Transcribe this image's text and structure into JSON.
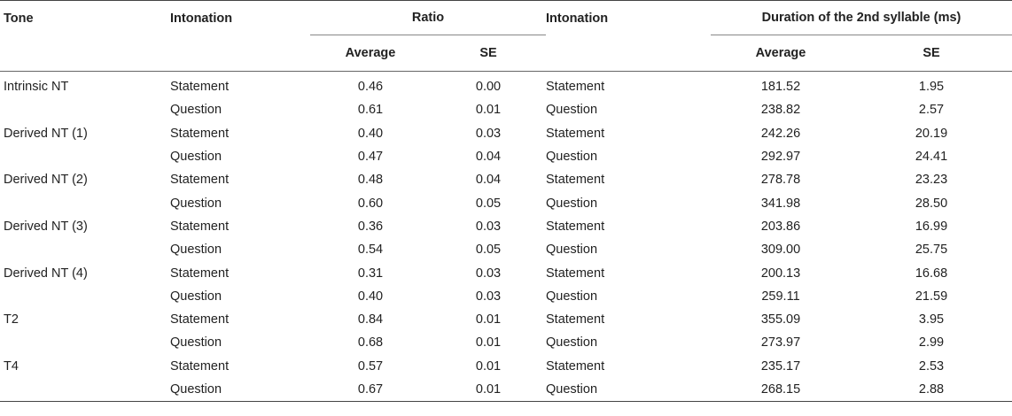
{
  "headers": {
    "tone": "Tone",
    "intonation": "Intonation",
    "ratio": "Ratio",
    "intonation2": "Intonation",
    "duration": "Duration of the 2nd syllable (ms)",
    "average": "Average",
    "se": "SE",
    "average2": "Average",
    "se2": "SE"
  },
  "rows": [
    {
      "tone": "Intrinsic NT",
      "int1": "Statement",
      "ratio_avg": "0.46",
      "ratio_se": "0.00",
      "int2": "Statement",
      "dur_avg": "181.52",
      "dur_se": "1.95"
    },
    {
      "tone": "",
      "int1": "Question",
      "ratio_avg": "0.61",
      "ratio_se": "0.01",
      "int2": "Question",
      "dur_avg": "238.82",
      "dur_se": "2.57"
    },
    {
      "tone": "Derived NT (1)",
      "int1": "Statement",
      "ratio_avg": "0.40",
      "ratio_se": "0.03",
      "int2": "Statement",
      "dur_avg": "242.26",
      "dur_se": "20.19"
    },
    {
      "tone": "",
      "int1": "Question",
      "ratio_avg": "0.47",
      "ratio_se": "0.04",
      "int2": "Question",
      "dur_avg": "292.97",
      "dur_se": "24.41"
    },
    {
      "tone": "Derived NT (2)",
      "int1": "Statement",
      "ratio_avg": "0.48",
      "ratio_se": "0.04",
      "int2": "Statement",
      "dur_avg": "278.78",
      "dur_se": "23.23"
    },
    {
      "tone": "",
      "int1": "Question",
      "ratio_avg": "0.60",
      "ratio_se": "0.05",
      "int2": "Question",
      "dur_avg": "341.98",
      "dur_se": "28.50"
    },
    {
      "tone": "Derived NT (3)",
      "int1": "Statement",
      "ratio_avg": "0.36",
      "ratio_se": "0.03",
      "int2": "Statement",
      "dur_avg": "203.86",
      "dur_se": "16.99"
    },
    {
      "tone": "",
      "int1": "Question",
      "ratio_avg": "0.54",
      "ratio_se": "0.05",
      "int2": "Question",
      "dur_avg": "309.00",
      "dur_se": "25.75"
    },
    {
      "tone": "Derived NT (4)",
      "int1": "Statement",
      "ratio_avg": "0.31",
      "ratio_se": "0.03",
      "int2": "Statement",
      "dur_avg": "200.13",
      "dur_se": "16.68"
    },
    {
      "tone": "",
      "int1": "Question",
      "ratio_avg": "0.40",
      "ratio_se": "0.03",
      "int2": "Question",
      "dur_avg": "259.11",
      "dur_se": "21.59"
    },
    {
      "tone": "T2",
      "int1": "Statement",
      "ratio_avg": "0.84",
      "ratio_se": "0.01",
      "int2": "Statement",
      "dur_avg": "355.09",
      "dur_se": "3.95"
    },
    {
      "tone": "",
      "int1": "Question",
      "ratio_avg": "0.68",
      "ratio_se": "0.01",
      "int2": "Question",
      "dur_avg": "273.97",
      "dur_se": "2.99"
    },
    {
      "tone": "T4",
      "int1": "Statement",
      "ratio_avg": "0.57",
      "ratio_se": "0.01",
      "int2": "Statement",
      "dur_avg": "235.17",
      "dur_se": "2.53"
    },
    {
      "tone": "",
      "int1": "Question",
      "ratio_avg": "0.67",
      "ratio_se": "0.01",
      "int2": "Question",
      "dur_avg": "268.15",
      "dur_se": "2.88"
    }
  ]
}
